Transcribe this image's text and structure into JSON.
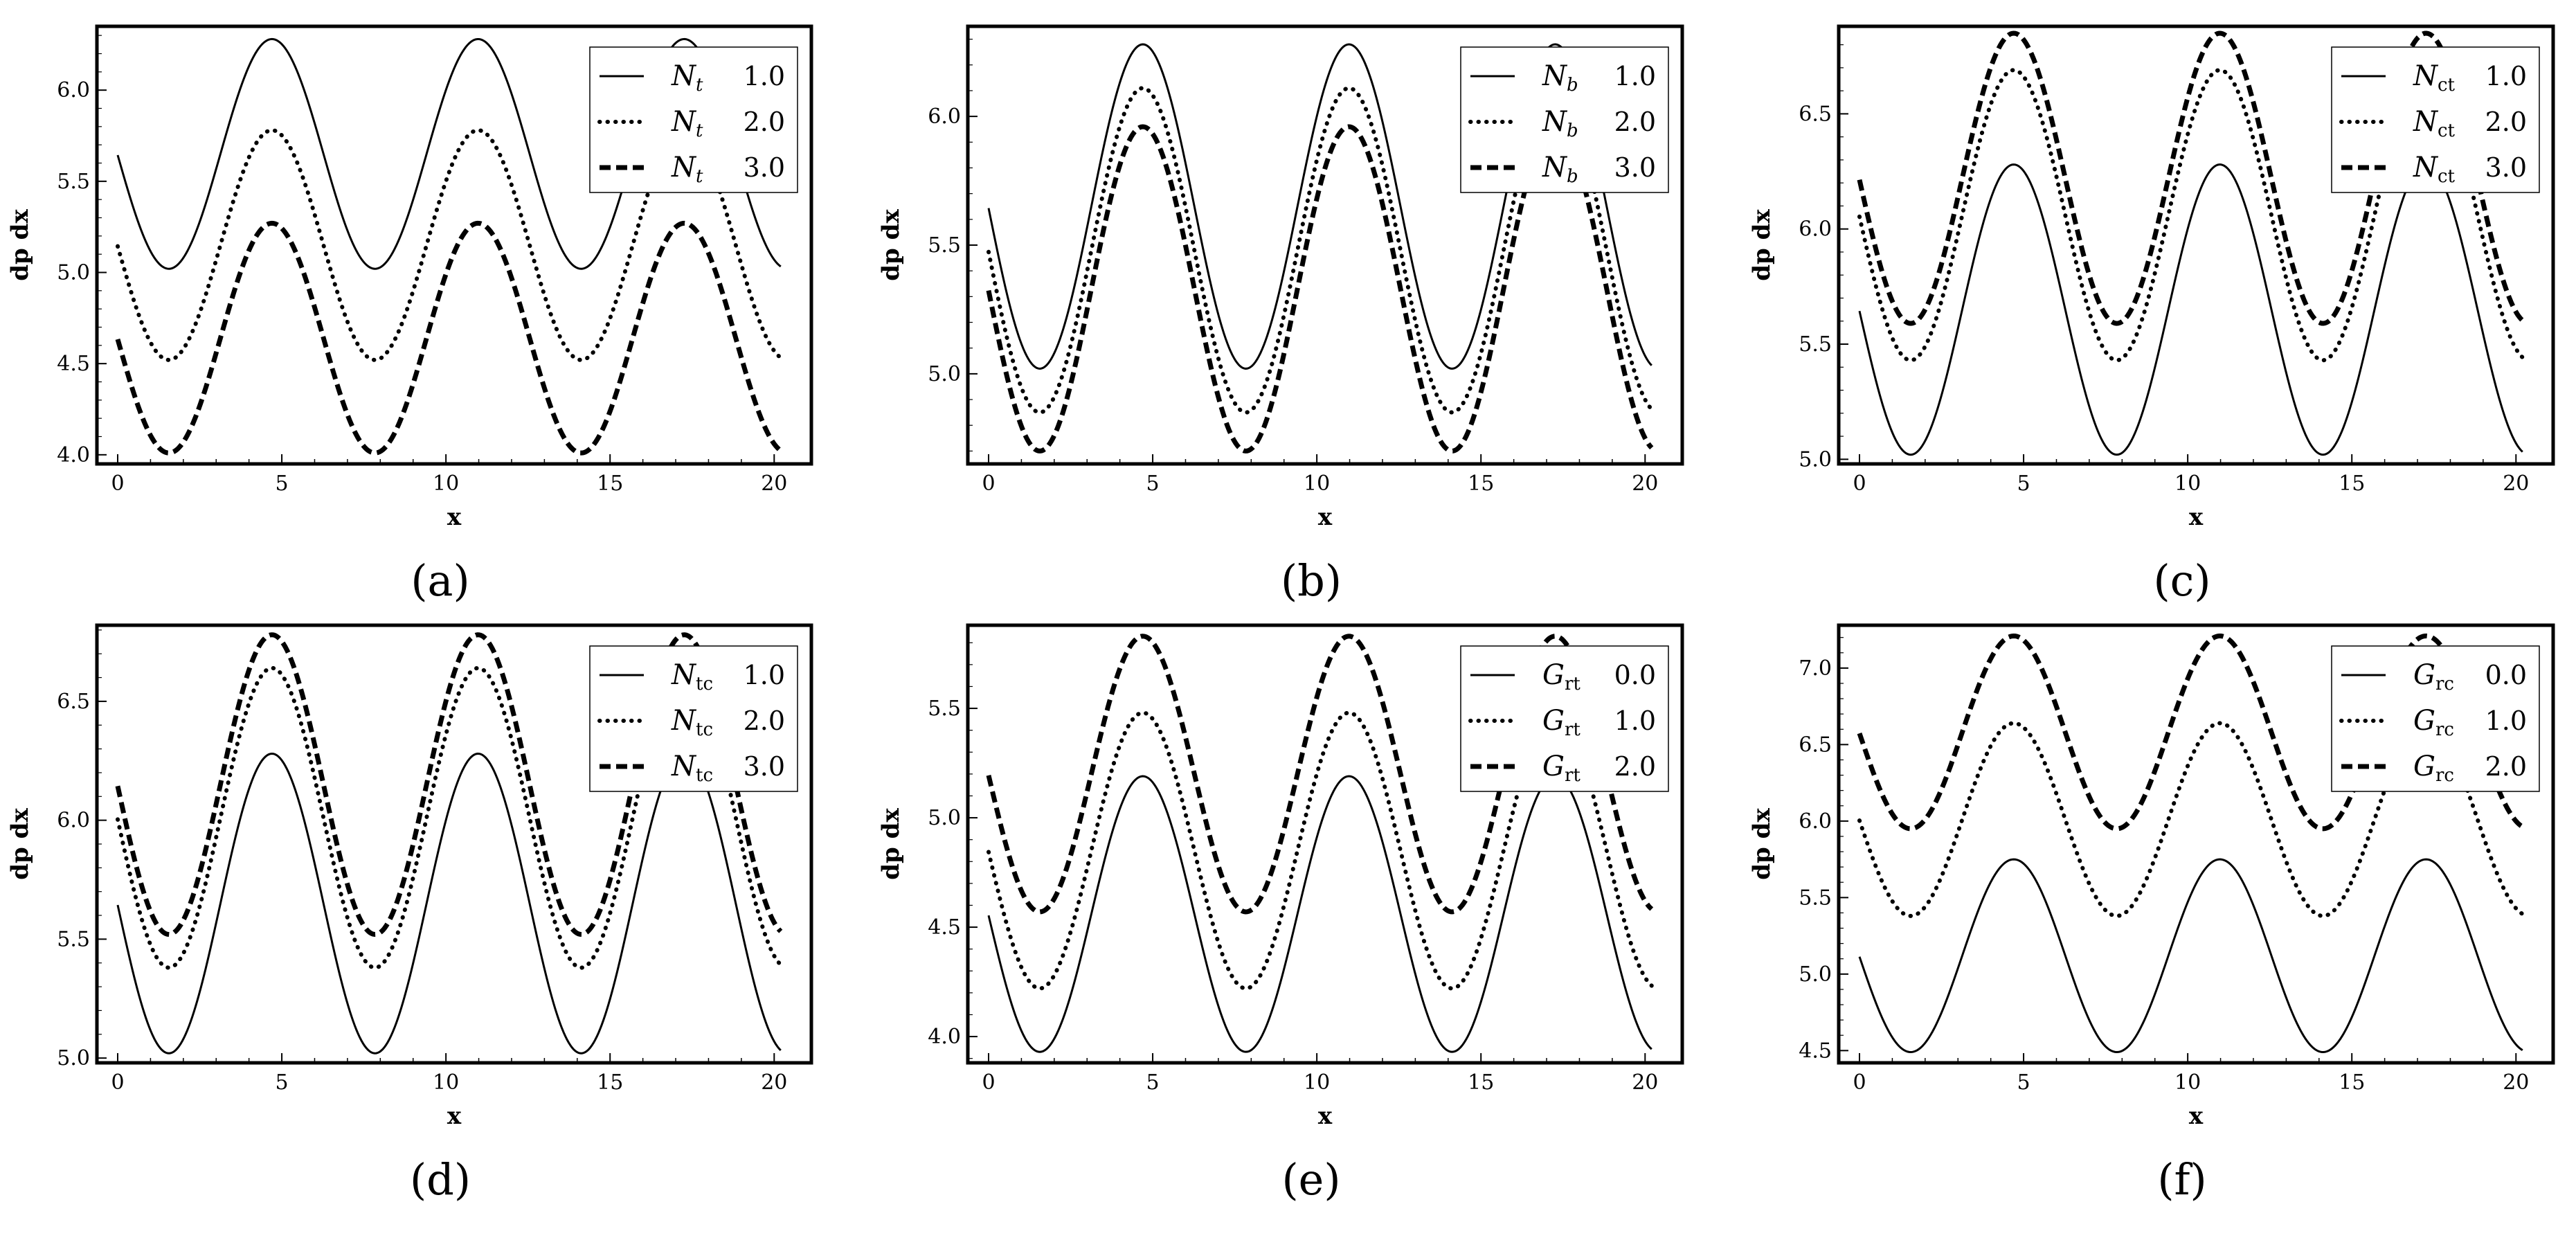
{
  "chart_data": [
    {
      "type": "line",
      "panel": "(a)",
      "xlabel": "x",
      "ylabel": "dp dx",
      "xlim": [
        0,
        20.5
      ],
      "ylim": [
        3.95,
        6.35
      ],
      "xticks": [
        "0",
        "5",
        "10",
        "15",
        "20"
      ],
      "yticks": [
        "4.0",
        "4.5",
        "5.0",
        "5.5",
        "6.0"
      ],
      "legend_position": "top-right",
      "series": [
        {
          "name": "N_t 1.0",
          "symbol": "N",
          "sub": "t",
          "sub_italic": true,
          "value": "1.0",
          "style": "solid",
          "mean": 5.65,
          "amp": 0.63
        },
        {
          "name": "N_t 2.0",
          "symbol": "N",
          "sub": "t",
          "sub_italic": true,
          "value": "2.0",
          "style": "dotted",
          "mean": 5.15,
          "amp": 0.63
        },
        {
          "name": "N_t 3.0",
          "symbol": "N",
          "sub": "t",
          "sub_italic": true,
          "value": "3.0",
          "style": "dashed",
          "mean": 4.64,
          "amp": 0.63
        }
      ]
    },
    {
      "type": "line",
      "panel": "(b)",
      "xlabel": "x",
      "ylabel": "dp dx",
      "xlim": [
        0,
        20.5
      ],
      "ylim": [
        4.65,
        6.35
      ],
      "xticks": [
        "0",
        "5",
        "10",
        "15",
        "20"
      ],
      "yticks": [
        "5.0",
        "5.5",
        "6.0"
      ],
      "legend_position": "top-right",
      "series": [
        {
          "name": "N_b 1.0",
          "symbol": "N",
          "sub": "b",
          "sub_italic": true,
          "value": "1.0",
          "style": "solid",
          "mean": 5.65,
          "amp": 0.63
        },
        {
          "name": "N_b 2.0",
          "symbol": "N",
          "sub": "b",
          "sub_italic": true,
          "value": "2.0",
          "style": "dotted",
          "mean": 5.48,
          "amp": 0.63
        },
        {
          "name": "N_b 3.0",
          "symbol": "N",
          "sub": "b",
          "sub_italic": true,
          "value": "3.0",
          "style": "dashed",
          "mean": 5.33,
          "amp": 0.63
        }
      ]
    },
    {
      "type": "line",
      "panel": "(c)",
      "xlabel": "x",
      "ylabel": "dp dx",
      "xlim": [
        0,
        20.5
      ],
      "ylim": [
        4.98,
        6.88
      ],
      "xticks": [
        "0",
        "5",
        "10",
        "15",
        "20"
      ],
      "yticks": [
        "5.0",
        "5.5",
        "6.0",
        "6.5"
      ],
      "legend_position": "top-right",
      "series": [
        {
          "name": "N_ct 1.0",
          "symbol": "N",
          "sub": "ct",
          "sub_italic": false,
          "value": "1.0",
          "style": "solid",
          "mean": 5.65,
          "amp": 0.63
        },
        {
          "name": "N_ct 2.0",
          "symbol": "N",
          "sub": "ct",
          "sub_italic": false,
          "value": "2.0",
          "style": "dotted",
          "mean": 6.06,
          "amp": 0.63
        },
        {
          "name": "N_ct 3.0",
          "symbol": "N",
          "sub": "ct",
          "sub_italic": false,
          "value": "3.0",
          "style": "dashed",
          "mean": 6.22,
          "amp": 0.63
        }
      ]
    },
    {
      "type": "line",
      "panel": "(d)",
      "xlabel": "x",
      "ylabel": "dp dx",
      "xlim": [
        0,
        20.5
      ],
      "ylim": [
        4.98,
        6.82
      ],
      "xticks": [
        "0",
        "5",
        "10",
        "15",
        "20"
      ],
      "yticks": [
        "5.0",
        "5.5",
        "6.0",
        "6.5"
      ],
      "legend_position": "top-right",
      "series": [
        {
          "name": "N_tc 1.0",
          "symbol": "N",
          "sub": "tc",
          "sub_italic": false,
          "value": "1.0",
          "style": "solid",
          "mean": 5.65,
          "amp": 0.63
        },
        {
          "name": "N_tc 2.0",
          "symbol": "N",
          "sub": "tc",
          "sub_italic": false,
          "value": "2.0",
          "style": "dotted",
          "mean": 6.01,
          "amp": 0.63
        },
        {
          "name": "N_tc 3.0",
          "symbol": "N",
          "sub": "tc",
          "sub_italic": false,
          "value": "3.0",
          "style": "dashed",
          "mean": 6.15,
          "amp": 0.63
        }
      ]
    },
    {
      "type": "line",
      "panel": "(e)",
      "xlabel": "x",
      "ylabel": "dp dx",
      "xlim": [
        0,
        20.5
      ],
      "ylim": [
        3.88,
        5.88
      ],
      "xticks": [
        "0",
        "5",
        "10",
        "15",
        "20"
      ],
      "yticks": [
        "4.0",
        "4.5",
        "5.0",
        "5.5"
      ],
      "legend_position": "top-right",
      "series": [
        {
          "name": "G_rt 0.0",
          "symbol": "G",
          "sub": "rt",
          "sub_italic": false,
          "value": "0.0",
          "style": "solid",
          "mean": 4.56,
          "amp": 0.63
        },
        {
          "name": "G_rt 1.0",
          "symbol": "G",
          "sub": "rt",
          "sub_italic": false,
          "value": "1.0",
          "style": "dotted",
          "mean": 4.85,
          "amp": 0.63
        },
        {
          "name": "G_rt 2.0",
          "symbol": "G",
          "sub": "rt",
          "sub_italic": false,
          "value": "2.0",
          "style": "dashed",
          "mean": 5.2,
          "amp": 0.63
        }
      ]
    },
    {
      "type": "line",
      "panel": "(f)",
      "xlabel": "x",
      "ylabel": "dp dx",
      "xlim": [
        0,
        20.5
      ],
      "ylim": [
        4.42,
        7.28
      ],
      "xticks": [
        "0",
        "5",
        "10",
        "15",
        "20"
      ],
      "yticks": [
        "4.5",
        "5.0",
        "5.5",
        "6.0",
        "6.5",
        "7.0"
      ],
      "legend_position": "top-right",
      "series": [
        {
          "name": "G_rc 0.0",
          "symbol": "G",
          "sub": "rc",
          "sub_italic": false,
          "value": "0.0",
          "style": "solid",
          "mean": 5.12,
          "amp": 0.63
        },
        {
          "name": "G_rc 1.0",
          "symbol": "G",
          "sub": "rc",
          "sub_italic": false,
          "value": "1.0",
          "style": "dotted",
          "mean": 6.01,
          "amp": 0.63
        },
        {
          "name": "G_rc 2.0",
          "symbol": "G",
          "sub": "rc",
          "sub_italic": false,
          "value": "2.0",
          "style": "dashed",
          "mean": 6.58,
          "amp": 0.63
        }
      ]
    }
  ]
}
